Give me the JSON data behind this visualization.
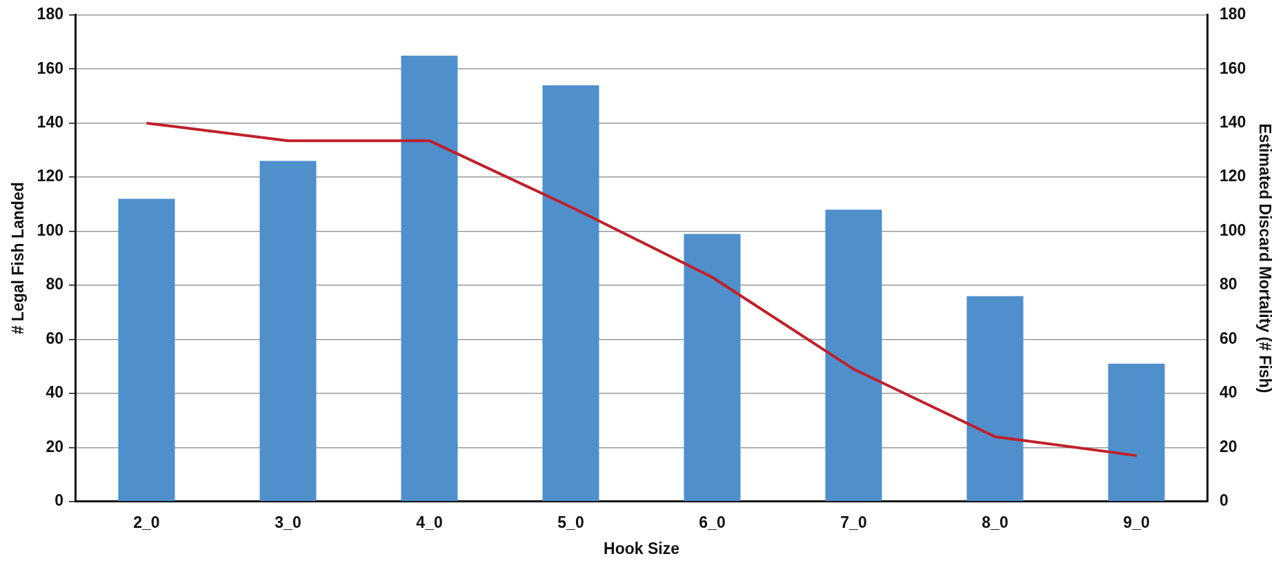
{
  "chart_data": {
    "type": "bar",
    "xlabel": "Hook Size",
    "ylabel": "# Legal Fish Landed",
    "y2label": "Estimated Discard Mortality (# Fish)",
    "categories": [
      "2_0",
      "3_0",
      "4_0",
      "5_0",
      "6_0",
      "7_0",
      "8_0",
      "9_0"
    ],
    "series": [
      {
        "color": "#4f8fcc",
        "values": [
          112,
          126,
          165,
          154,
          99,
          108,
          76,
          51
        ]
      },
      {
        "type": "line",
        "axis": "y2",
        "color": "#c0202a",
        "values": [
          140,
          133.5,
          133.5,
          109,
          83,
          49,
          24,
          17
        ]
      }
    ],
    "ylim": [
      0,
      180
    ],
    "yticks": [
      0,
      20,
      40,
      60,
      80,
      100,
      120,
      140,
      160,
      180
    ],
    "y2lim": [
      0,
      180
    ],
    "y2ticks": [
      0,
      20,
      40,
      60,
      80,
      100,
      120,
      140,
      160,
      180
    ],
    "grid": "y",
    "legend": false,
    "marker": "none",
    "line_style": "solid"
  }
}
